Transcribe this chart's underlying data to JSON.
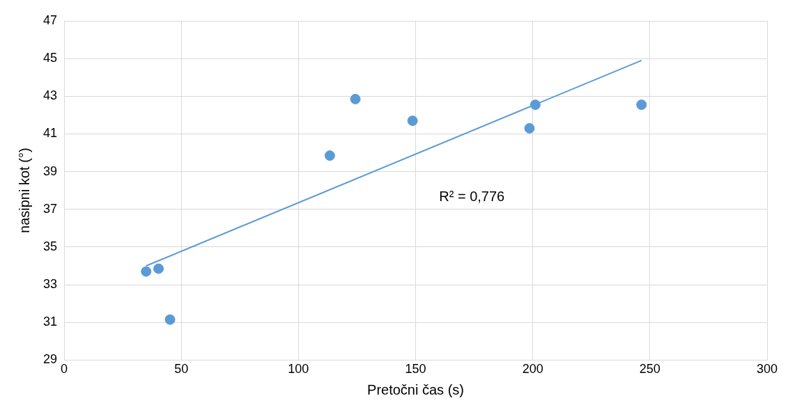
{
  "chart_data": {
    "type": "scatter",
    "xlabel": "Pretočni čas (s)",
    "ylabel": "nasipni kot (°)",
    "xlim": [
      0,
      300
    ],
    "xticks": [
      0,
      50,
      100,
      150,
      200,
      250,
      300
    ],
    "ylim": [
      29,
      47
    ],
    "yticks": [
      29,
      31,
      33,
      35,
      37,
      39,
      41,
      43,
      45,
      47
    ],
    "grid": true,
    "legend": false,
    "annotations": [
      "R² = 0,776"
    ],
    "series": [
      {
        "marker": "circle",
        "color": "#5b9bd5",
        "x": [
          35,
          40.3,
          45.2,
          113.4,
          124.3,
          148.7,
          198.6,
          201.1,
          246.4
        ],
        "values": [
          33.7,
          33.85,
          31.15,
          39.85,
          42.85,
          41.7,
          41.3,
          42.55,
          42.55
        ]
      },
      {
        "type": "line",
        "marker": "none",
        "color": "#5b9bd5",
        "x": [
          35,
          246.4
        ],
        "values": [
          34.0,
          44.9
        ]
      }
    ]
  }
}
